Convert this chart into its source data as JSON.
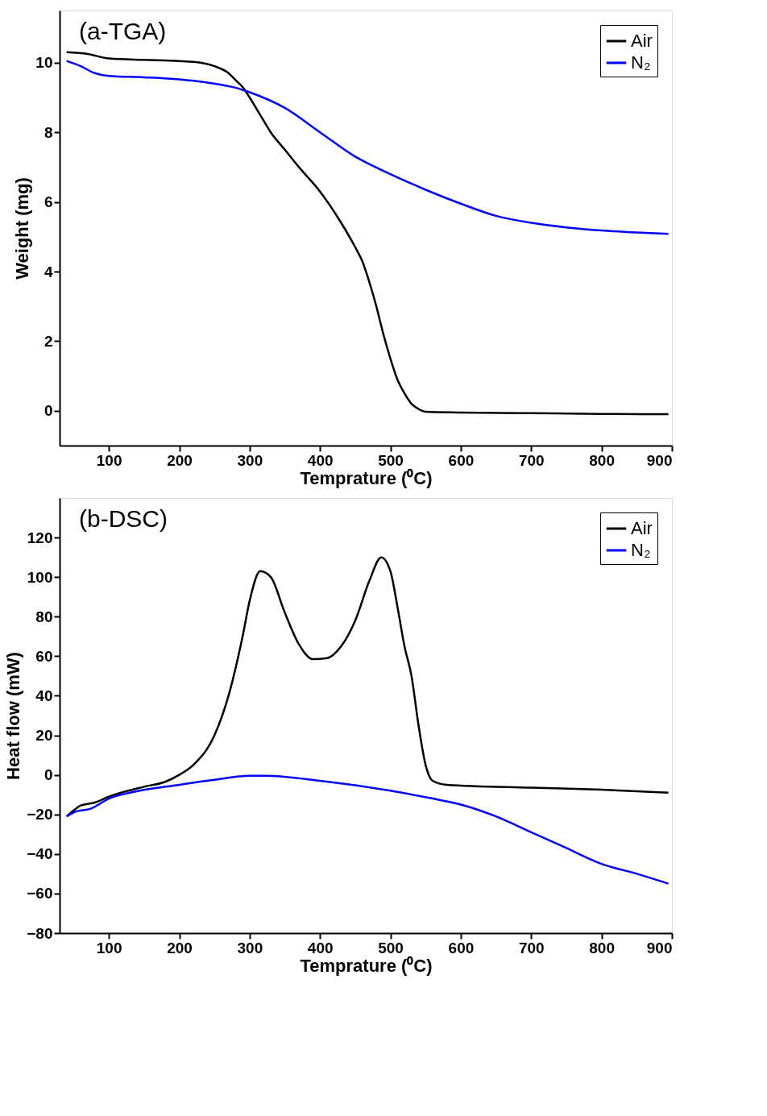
{
  "chart_data": [
    {
      "type": "line",
      "annotations": [
        "(a-TGA)"
      ],
      "xlabel": "Temprature (⁰C)",
      "ylabel": "Weight (mg)",
      "xlim": [
        30,
        900
      ],
      "xticks": [
        100,
        200,
        300,
        400,
        500,
        600,
        700,
        800,
        900
      ],
      "ylim": [
        -1,
        11.5
      ],
      "yticks": [
        0,
        2,
        4,
        6,
        8,
        10
      ],
      "grid": false,
      "legend": "top right",
      "line_style": "solid",
      "marker": "none",
      "series": [
        {
          "name": "Air",
          "color": "#000000",
          "x": [
            40,
            70,
            100,
            150,
            200,
            230,
            250,
            270,
            280,
            290,
            300,
            315,
            330,
            350,
            370,
            400,
            430,
            450,
            460,
            470,
            480,
            490,
            500,
            510,
            520,
            530,
            540,
            550,
            600,
            700,
            800,
            895
          ],
          "values": [
            10.3,
            10.25,
            10.12,
            10.08,
            10.05,
            10.0,
            9.9,
            9.7,
            9.5,
            9.3,
            9.0,
            8.5,
            8.0,
            7.5,
            7.0,
            6.3,
            5.4,
            4.7,
            4.3,
            3.7,
            3.0,
            2.2,
            1.5,
            0.9,
            0.5,
            0.2,
            0.05,
            -0.03,
            -0.05,
            -0.07,
            -0.09,
            -0.1
          ]
        },
        {
          "name": "N₂",
          "color": "#0000ff",
          "x": [
            40,
            60,
            80,
            100,
            150,
            200,
            250,
            280,
            300,
            350,
            400,
            450,
            500,
            550,
            600,
            650,
            700,
            750,
            800,
            850,
            895
          ],
          "values": [
            10.05,
            9.9,
            9.7,
            9.62,
            9.58,
            9.52,
            9.4,
            9.28,
            9.15,
            8.7,
            8.0,
            7.3,
            6.8,
            6.35,
            5.95,
            5.6,
            5.4,
            5.27,
            5.18,
            5.12,
            5.08
          ]
        }
      ]
    },
    {
      "type": "line",
      "annotations": [
        "(b-DSC)"
      ],
      "xlabel": "Temprature (⁰C)",
      "ylabel": "Heat flow (mW)",
      "xlim": [
        30,
        900
      ],
      "xticks": [
        100,
        200,
        300,
        400,
        500,
        600,
        700,
        800,
        900
      ],
      "ylim": [
        -80,
        140
      ],
      "yticks": [
        -80,
        -60,
        -40,
        -20,
        0,
        20,
        40,
        60,
        80,
        100,
        120
      ],
      "grid": false,
      "legend": "top right",
      "line_style": "solid",
      "marker": "none",
      "series": [
        {
          "name": "Air",
          "color": "#000000",
          "x": [
            40,
            50,
            60,
            80,
            100,
            150,
            180,
            200,
            220,
            250,
            270,
            290,
            300,
            315,
            330,
            350,
            370,
            390,
            410,
            430,
            450,
            470,
            487,
            500,
            510,
            520,
            530,
            540,
            550,
            560,
            580,
            700,
            800,
            895
          ],
          "values": [
            -21,
            -18,
            -15.5,
            -14,
            -11,
            -6,
            -3.5,
            0,
            5,
            20,
            40,
            70,
            88,
            103,
            100,
            82,
            66,
            58.5,
            59,
            65,
            78,
            98,
            110,
            103,
            85,
            65,
            50,
            25,
            5,
            -3,
            -5,
            -6.5,
            -7.5,
            -9
          ]
        },
        {
          "name": "N₂",
          "color": "#0000ff",
          "x": [
            40,
            50,
            75,
            100,
            130,
            200,
            250,
            300,
            320,
            400,
            500,
            560,
            600,
            650,
            700,
            750,
            800,
            850,
            895
          ],
          "values": [
            -21,
            -19,
            -17,
            -12,
            -9,
            -5,
            -2.5,
            -0.5,
            -0.5,
            -3,
            -8,
            -12,
            -15,
            -21,
            -29,
            -37,
            -45,
            -50,
            -55
          ]
        }
      ]
    }
  ]
}
